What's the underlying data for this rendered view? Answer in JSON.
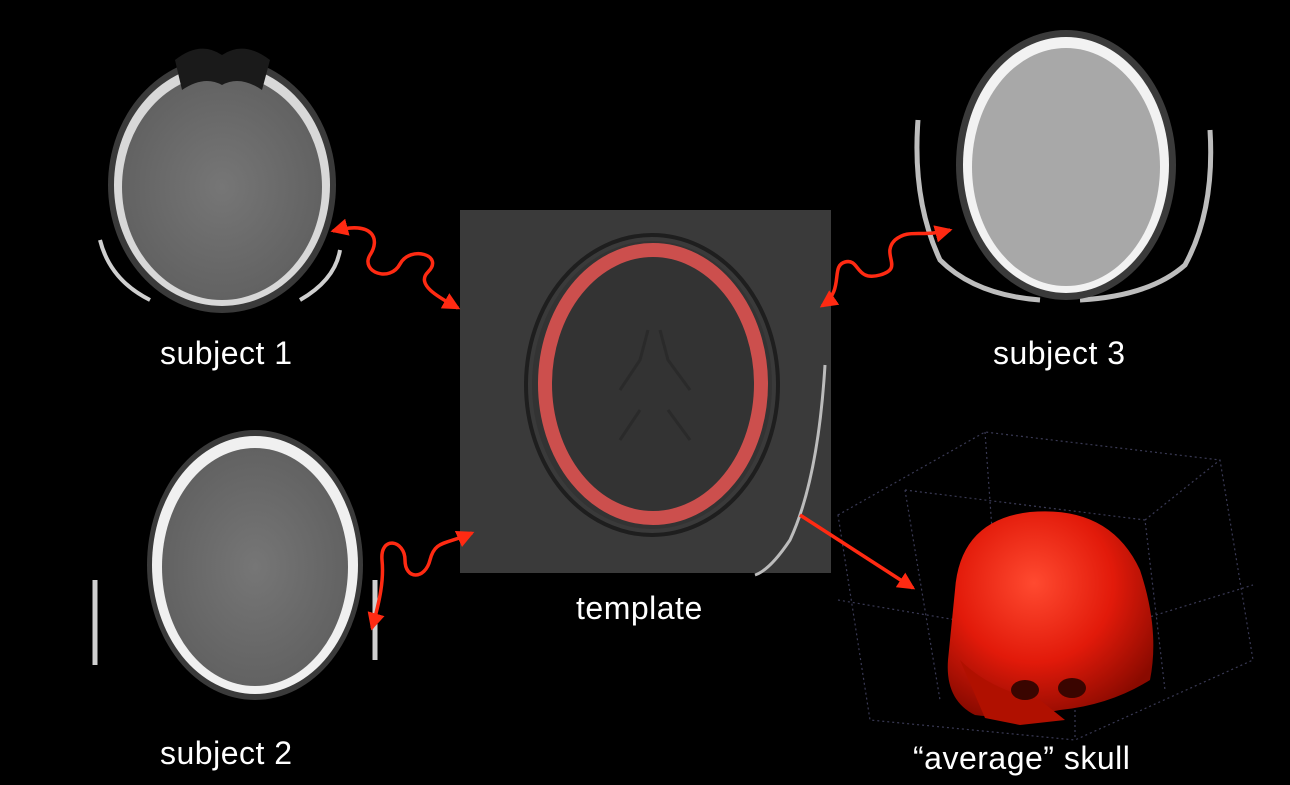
{
  "labels": {
    "subject1": "subject 1",
    "subject2": "subject 2",
    "subject3": "subject 3",
    "template": "template",
    "average_skull": "“average” skull"
  },
  "colors": {
    "background": "#000000",
    "arrow": "#ff2a12",
    "template_ring": "#e85552",
    "skull": "#e21a0a"
  }
}
